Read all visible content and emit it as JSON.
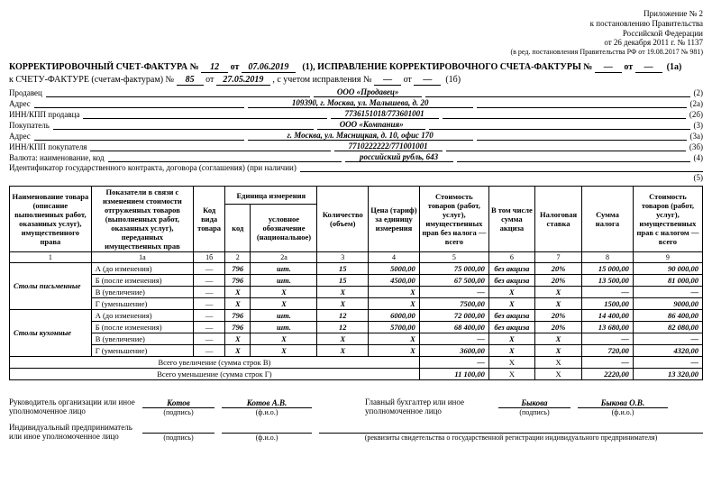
{
  "header": {
    "app_no": "Приложение № 2",
    "gov": "к постановлению Правительства",
    "rf": "Российской Федерации",
    "date_decree": "от 26 декабря 2011 г. № 1137",
    "edit": "(в ред. постановления Правительства РФ от 19.08.2017 № 981)"
  },
  "title": {
    "line1_a": "КОРРЕКТИРОВОЧНЫЙ СЧЕТ-ФАКТУРА  №",
    "num1": "12",
    "ot": "от",
    "date1": "07.06.2019",
    "line1_b": "(1), ИСПРАВЛЕНИЕ КОРРЕКТИРОВОЧНОГО СЧЕТА-ФАКТУРЫ  №",
    "dash": "—",
    "tail1": "(1а)",
    "line2_a": "к СЧЕТУ-ФАКТУРЕ (счетам-фактурам) №",
    "num2": "85",
    "date2": "27.05.2019",
    "line2_b": ", с учетом исправления №",
    "tail2": "(1б)"
  },
  "fields": {
    "seller_l": "Продавец",
    "seller_v": "ООО «Продавец»",
    "seller_c": "(2)",
    "addr_l": "Адрес",
    "addr_v": "109390, г. Москва, ул. Малышева, д. 20",
    "addr_c": "(2а)",
    "inn1_l": "ИНН/КПП продавца",
    "inn1_v": "7736151018/773601001",
    "inn1_c": "(2б)",
    "buyer_l": "Покупатель",
    "buyer_v": "ООО «Компания»",
    "buyer_c": "(3)",
    "addr2_l": "Адрес",
    "addr2_v": "г. Москва, ул. Мясницкая, д. 10, офис 170",
    "addr2_c": "(3а)",
    "inn2_l": "ИНН/КПП покупателя",
    "inn2_v": "7710222222/771001001",
    "inn2_c": "(3б)",
    "cur_l": "Валюта: наименование, код",
    "cur_v": "российский рубль, 643",
    "cur_c": "(4)",
    "ident": "Идентификатор государственного контракта, договора (соглашения) (при наличии)",
    "ident_c": "(5)"
  },
  "columns": {
    "c1": "Наименование товара (описание выполненных работ, оказанных услуг), имущественного права",
    "c1a": "Показатели в связи с изменением стоимости отгруженных товаров (выполненных работ, оказанных услуг), переданных имущественных прав",
    "c1b": "Код вида товара",
    "c2g": "Единица измерения",
    "c2": "код",
    "c2a": "условное обозначение (национальное)",
    "c3": "Количество (объем)",
    "c4": "Цена (тариф) за единицу измерения",
    "c5": "Стоимость товаров (работ, услуг), имущественных прав без налога — всего",
    "c6": "В том числе сумма акциза",
    "c7": "Налоговая ставка",
    "c8": "Сумма налога",
    "c9": "Стоимость товаров (работ, услуг), имущественных прав с налогом — всего",
    "n1": "1",
    "n1a": "1а",
    "n1b": "1б",
    "n2": "2",
    "n2a": "2а",
    "n3": "3",
    "n4": "4",
    "n5": "5",
    "n6": "6",
    "n7": "7",
    "n8": "8",
    "n9": "9"
  },
  "rows": [
    {
      "name": "Столы письменные",
      "sub": "А (до изменения)",
      "c1b": "—",
      "c2": "796",
      "c2a": "шт.",
      "c3": "15",
      "c4": "5000,00",
      "c5": "75 000,00",
      "c6": "без акциза",
      "c7": "20%",
      "c8": "15 000,00",
      "c9": "90 000,00"
    },
    {
      "name": "",
      "sub": "Б (после изменения)",
      "c1b": "—",
      "c2": "796",
      "c2a": "шт.",
      "c3": "15",
      "c4": "4500,00",
      "c5": "67 500,00",
      "c6": "без акциза",
      "c7": "20%",
      "c8": "13 500,00",
      "c9": "81 000,00"
    },
    {
      "name": "",
      "sub": "В (увеличение)",
      "c1b": "—",
      "c2": "X",
      "c2a": "X",
      "c3": "X",
      "c4": "X",
      "c5": "—",
      "c6": "X",
      "c7": "X",
      "c8": "—",
      "c9": "—"
    },
    {
      "name": "",
      "sub": "Г (уменьшение)",
      "c1b": "—",
      "c2": "X",
      "c2a": "X",
      "c3": "X",
      "c4": "X",
      "c5": "7500,00",
      "c6": "X",
      "c7": "X",
      "c8": "1500,00",
      "c9": "9000,00"
    },
    {
      "name": "Столы кухонные",
      "sub": "А (до изменения)",
      "c1b": "—",
      "c2": "796",
      "c2a": "шт.",
      "c3": "12",
      "c4": "6000,00",
      "c5": "72 000,00",
      "c6": "без акциза",
      "c7": "20%",
      "c8": "14 400,00",
      "c9": "86 400,00"
    },
    {
      "name": "",
      "sub": "Б (после изменения)",
      "c1b": "—",
      "c2": "796",
      "c2a": "шт.",
      "c3": "12",
      "c4": "5700,00",
      "c5": "68 400,00",
      "c6": "без акциза",
      "c7": "20%",
      "c8": "13 680,00",
      "c9": "82 080,00"
    },
    {
      "name": "",
      "sub": "В (увеличение)",
      "c1b": "—",
      "c2": "X",
      "c2a": "X",
      "c3": "X",
      "c4": "X",
      "c5": "—",
      "c6": "X",
      "c7": "X",
      "c8": "—",
      "c9": "—"
    },
    {
      "name": "",
      "sub": "Г (уменьшение)",
      "c1b": "—",
      "c2": "X",
      "c2a": "X",
      "c3": "X",
      "c4": "X",
      "c5": "3600,00",
      "c6": "X",
      "c7": "X",
      "c8": "720,00",
      "c9": "4320,00"
    }
  ],
  "totals": {
    "inc_l": "Всего увеличение (сумма строк В)",
    "inc": {
      "c5": "—",
      "c6": "X",
      "c7": "X",
      "c8": "—",
      "c9": "—"
    },
    "dec_l": "Всего уменьшение (сумма строк Г)",
    "dec": {
      "c5": "11 100,00",
      "c6": "X",
      "c7": "X",
      "c8": "2220,00",
      "c9": "13 320,00"
    }
  },
  "sign": {
    "ruk_l": "Руководитель организации или иное уполномоченное лицо",
    "ruk_sig": "Котов",
    "ruk_fio": "Котов А.В.",
    "buh_l": "Главный бухгалтер или иное уполномоченное лицо",
    "buh_sig": "Быкова",
    "buh_fio": "Быкова О.В.",
    "ip_l": "Индивидуальный предприниматель или иное уполномоченное лицо",
    "pod": "(подпись)",
    "fio": "(ф.и.о.)",
    "rekv": "(реквизиты свидетельства о государственной регистрации индивидуального предпринимателя)"
  }
}
